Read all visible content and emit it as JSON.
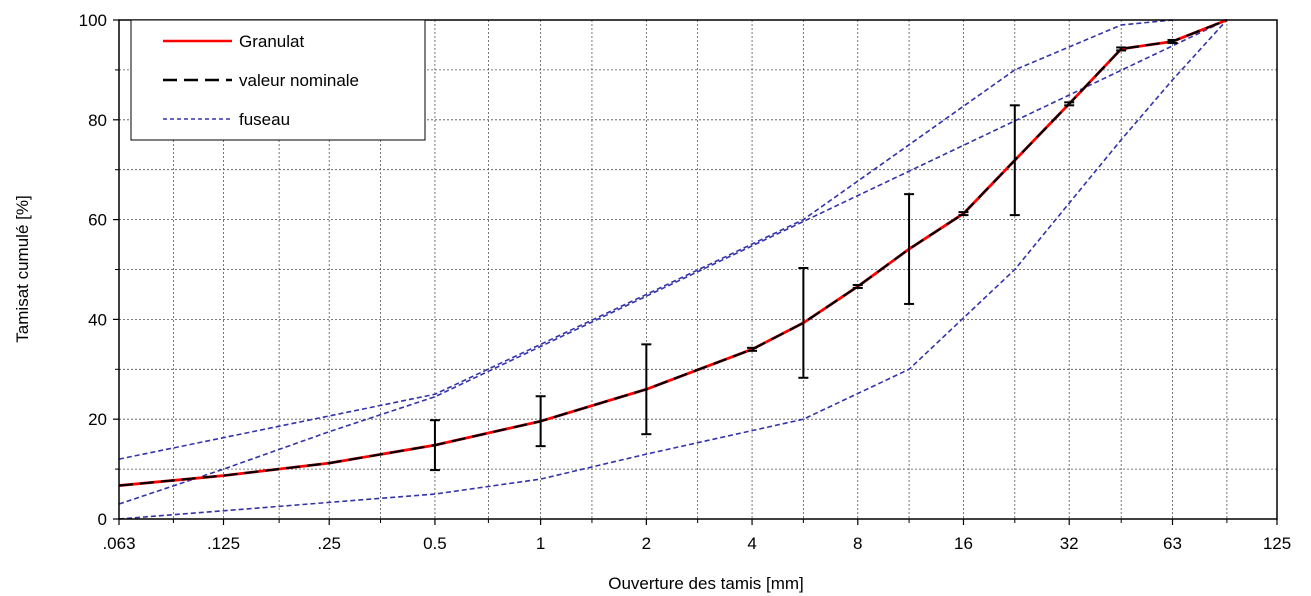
{
  "chart_data": {
    "type": "line",
    "xscale": "log2",
    "xlabel": "Ouverture des tamis [mm]",
    "ylabel": "Tamisat cumulé [%]",
    "ylim": [
      0,
      100
    ],
    "yticks": [
      0,
      20,
      40,
      60,
      80,
      100
    ],
    "xlim": [
      0.063,
      125
    ],
    "xticks": [
      {
        "value": 0.063,
        "label": ".063"
      },
      {
        "value": 0.125,
        "label": ".125"
      },
      {
        "value": 0.25,
        "label": ".25"
      },
      {
        "value": 0.5,
        "label": "0.5"
      },
      {
        "value": 1,
        "label": "1"
      },
      {
        "value": 2,
        "label": "2"
      },
      {
        "value": 4,
        "label": "4"
      },
      {
        "value": 8,
        "label": "8"
      },
      {
        "value": 16,
        "label": "16"
      },
      {
        "value": 32,
        "label": "32"
      },
      {
        "value": 63,
        "label": "63"
      },
      {
        "value": 125,
        "label": "125"
      }
    ],
    "minor_gridlines_x": [
      0.09,
      0.18,
      0.35,
      0.71,
      1.4,
      2.8,
      5.6,
      11.2,
      22.4,
      45,
      90
    ],
    "grid": true,
    "legend": {
      "placement": "top-left",
      "entries": [
        {
          "label": "Granulat",
          "color": "#ff0000",
          "style": "solid"
        },
        {
          "label": "valeur nominale",
          "color": "#000000",
          "style": "long-dash"
        },
        {
          "label": "fuseau",
          "color": "#3333aa",
          "style": "short-dash"
        }
      ]
    },
    "series": [
      {
        "name": "Granulat",
        "color": "#ff0000",
        "x": [
          0.063,
          0.125,
          0.25,
          0.5,
          1,
          2,
          4,
          5.6,
          8,
          11.2,
          16,
          22.4,
          32,
          45,
          63,
          90
        ],
        "y": [
          6.7,
          8.7,
          11.2,
          14.8,
          19.6,
          26,
          34,
          39.3,
          46.6,
          54.1,
          61.2,
          71.9,
          83.2,
          94.2,
          95.7,
          100
        ]
      },
      {
        "name": "valeur nominale",
        "color": "#000000",
        "x": [
          0.063,
          0.125,
          0.25,
          0.5,
          1,
          2,
          4,
          5.6,
          8,
          11.2,
          16,
          22.4,
          32,
          45,
          63,
          90
        ],
        "y": [
          6.7,
          8.7,
          11.2,
          14.8,
          19.6,
          26,
          34,
          39.3,
          46.6,
          54.1,
          61.2,
          71.9,
          83.2,
          94.2,
          95.7,
          100
        ]
      },
      {
        "name": "fuseau",
        "color": "#3333aa",
        "x": [
          0.063,
          0.5,
          2,
          5.6,
          22.4,
          45,
          63
        ],
        "y": [
          12,
          25,
          45,
          60,
          90,
          99,
          100
        ]
      },
      {
        "name": "fuseau",
        "color": "#3333aa",
        "x": [
          0.063,
          0.125,
          0.25,
          0.5,
          90
        ],
        "y": [
          3,
          10,
          17.5,
          24.5,
          100
        ]
      },
      {
        "name": "fuseau",
        "color": "#3333aa",
        "x": [
          0.063,
          0.5,
          1,
          2,
          5.6,
          11.2,
          22.4,
          45,
          63,
          90
        ],
        "y": [
          0,
          5,
          8,
          13,
          20,
          30,
          50,
          76,
          88,
          100
        ]
      }
    ],
    "error_bars": [
      {
        "x": 0.5,
        "low": 9.8,
        "high": 19.8
      },
      {
        "x": 1,
        "low": 14.6,
        "high": 24.6
      },
      {
        "x": 2,
        "low": 17,
        "high": 35
      },
      {
        "x": 4,
        "low": 33.7,
        "high": 34.3
      },
      {
        "x": 5.6,
        "low": 28.3,
        "high": 50.3
      },
      {
        "x": 8,
        "low": 46.3,
        "high": 46.9
      },
      {
        "x": 11.2,
        "low": 43.1,
        "high": 65.1
      },
      {
        "x": 16,
        "low": 60.9,
        "high": 61.5
      },
      {
        "x": 22.4,
        "low": 60.9,
        "high": 82.9
      },
      {
        "x": 32,
        "low": 82.9,
        "high": 83.5
      },
      {
        "x": 45,
        "low": 93.9,
        "high": 94.5
      },
      {
        "x": 63,
        "low": 95.4,
        "high": 96
      }
    ]
  }
}
